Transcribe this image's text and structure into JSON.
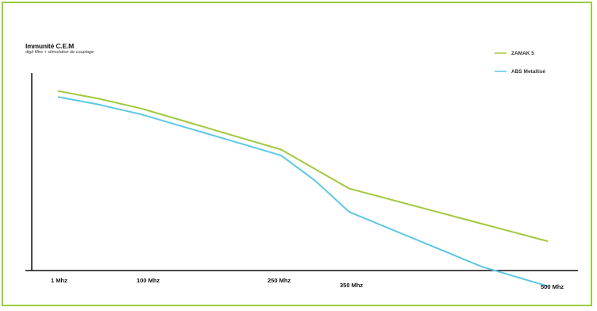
{
  "chart_data": {
    "type": "line",
    "title": "Immunité C.E.M",
    "subtitle": "digit filtre + stimulation de couplage",
    "xlabel": "",
    "ylabel": "",
    "categories": [
      "1 Mhz",
      "100 Mhz",
      "250 Mhz",
      "350 Mhz",
      "500 Mhz"
    ],
    "x_values": [
      1,
      100,
      250,
      350,
      500
    ],
    "y_unit": "relative",
    "ylim": [
      0,
      100
    ],
    "grid": false,
    "legend_position": "top-right",
    "series": [
      {
        "name": "ZAMAK 5",
        "color": "#a2c83c",
        "x": [
          1,
          50,
          100,
          150,
          200,
          250,
          300,
          350,
          400,
          450,
          500
        ],
        "y": [
          92,
          88,
          83,
          76,
          69,
          62,
          52,
          42,
          33,
          24,
          15
        ]
      },
      {
        "name": "ABS Metallisé",
        "color": "#5cc8e6",
        "x": [
          1,
          50,
          100,
          150,
          200,
          250,
          300,
          350,
          400,
          450,
          500
        ],
        "y": [
          89,
          85,
          80,
          73,
          66,
          59,
          46,
          30,
          16,
          2,
          -8
        ]
      }
    ]
  }
}
